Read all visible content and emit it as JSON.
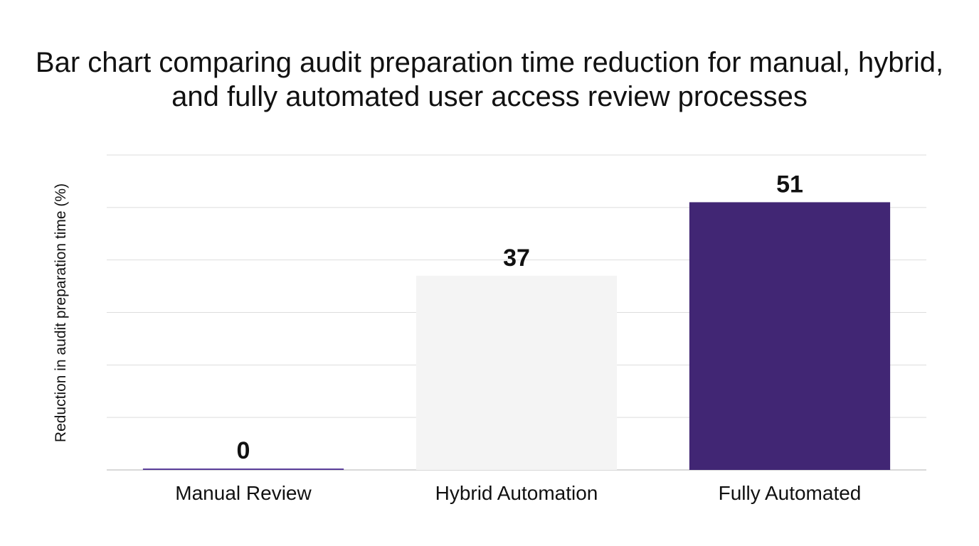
{
  "chart_data": {
    "type": "bar",
    "title": "Bar chart comparing audit preparation time reduction for manual, hybrid, and fully automated user access review processes",
    "xlabel": "",
    "ylabel": "Reduction in audit preparation time (%)",
    "categories": [
      "Manual Review",
      "Hybrid Automation",
      "Fully Automated"
    ],
    "values": [
      0,
      37,
      51
    ],
    "ylim": [
      0,
      60
    ],
    "grid": true,
    "legend": "none",
    "bar_colors": [
      "#5b3f9b",
      "#f4f4f4",
      "#412674"
    ],
    "gridline_color": "#dddddd"
  }
}
